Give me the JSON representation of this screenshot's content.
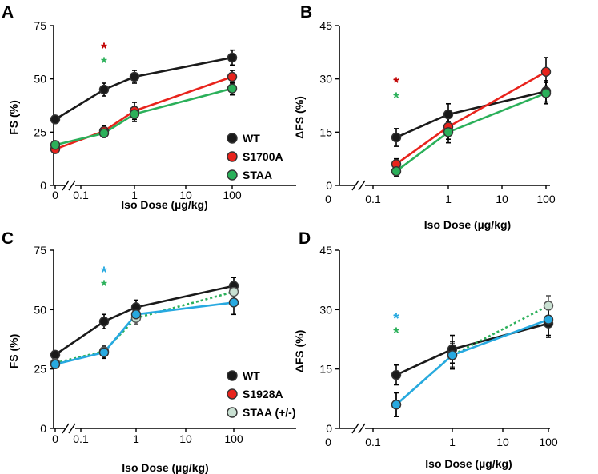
{
  "figure": {
    "colors": {
      "WT": "#1a1a1a",
      "S1700A": "#e8231c",
      "STAA": "#2bb05a",
      "S1928A": "#e8231c",
      "STAA_het": "#c9e0d2",
      "STAA_het_line": "#2bb05a",
      "S1928A_line": "#27a9e0",
      "sig_red": "#c00000",
      "sig_green": "#2bb05a",
      "sig_blue": "#27a9e0"
    }
  },
  "chart_data": [
    {
      "panel": "A",
      "type": "line",
      "xlabel": "Iso Dose (µg/kg)",
      "ylabel": "FS (%)",
      "x_ticks": [
        "0",
        "0.1",
        "1",
        "10",
        "100"
      ],
      "y_ticks": [
        0,
        25,
        50,
        75
      ],
      "ylim": [
        0,
        75
      ],
      "series": [
        {
          "name": "WT",
          "color_key": "WT",
          "line_key": "WT",
          "style": "solid",
          "x": [
            "0",
            "0.2",
            "1",
            "100"
          ],
          "values": [
            31,
            45,
            51,
            60
          ],
          "errors": [
            1.5,
            3,
            3,
            3.5
          ]
        },
        {
          "name": "S1700A",
          "color_key": "S1700A",
          "line_key": "S1700A",
          "style": "solid",
          "x": [
            "0",
            "0.2",
            "1",
            "100"
          ],
          "values": [
            17,
            25.5,
            35,
            51
          ],
          "errors": [
            1.5,
            2.5,
            4,
            3
          ]
        },
        {
          "name": "STAA",
          "color_key": "STAA",
          "line_key": "STAA",
          "style": "solid",
          "x": [
            "0",
            "0.2",
            "1",
            "100"
          ],
          "values": [
            19,
            24.5,
            33.5,
            45.5
          ],
          "errors": [
            1.5,
            2,
            3.5,
            3
          ]
        }
      ],
      "legend": [
        "WT",
        "S1700A",
        "STAA"
      ],
      "significance": [
        {
          "x": "0.2",
          "symbol": "*",
          "color_key": "sig_red"
        },
        {
          "x": "0.2",
          "symbol": "*",
          "color_key": "sig_green"
        }
      ]
    },
    {
      "panel": "B",
      "type": "line",
      "xlabel": "Iso Dose (µg/kg)",
      "ylabel": "ΔFS (%)",
      "x_ticks": [
        "0",
        "0.1",
        "1",
        "10",
        "100"
      ],
      "y_ticks": [
        0,
        15,
        30,
        45
      ],
      "ylim": [
        0,
        45
      ],
      "series": [
        {
          "name": "WT",
          "color_key": "WT",
          "line_key": "WT",
          "style": "solid",
          "x": [
            "0.2",
            "1",
            "100"
          ],
          "values": [
            13.5,
            20,
            26.5
          ],
          "errors": [
            2.5,
            3,
            3
          ]
        },
        {
          "name": "S1700A",
          "color_key": "S1700A",
          "line_key": "S1700A",
          "style": "solid",
          "x": [
            "0.2",
            "1",
            "100"
          ],
          "values": [
            6,
            16.5,
            32
          ],
          "errors": [
            1.5,
            3.5,
            4
          ]
        },
        {
          "name": "STAA",
          "color_key": "STAA",
          "line_key": "STAA",
          "style": "solid",
          "x": [
            "0.2",
            "1",
            "100"
          ],
          "values": [
            4,
            15,
            26
          ],
          "errors": [
            1.5,
            3,
            3
          ]
        }
      ],
      "legend": [],
      "significance": [
        {
          "x": "0.2",
          "symbol": "*",
          "color_key": "sig_red"
        },
        {
          "x": "0.2",
          "symbol": "*",
          "color_key": "sig_green"
        }
      ]
    },
    {
      "panel": "C",
      "type": "line",
      "xlabel": "Iso Dose (µg/kg)",
      "ylabel": "FS (%)",
      "x_ticks": [
        "0",
        "0.1",
        "1",
        "10",
        "100"
      ],
      "y_ticks": [
        0,
        25,
        50,
        75
      ],
      "ylim": [
        0,
        75
      ],
      "series": [
        {
          "name": "WT",
          "color_key": "WT",
          "line_key": "WT",
          "style": "solid",
          "x": [
            "0",
            "0.2",
            "1",
            "100"
          ],
          "values": [
            31,
            45,
            51,
            60
          ],
          "errors": [
            1.5,
            3,
            3,
            3.5
          ]
        },
        {
          "name": "STAA (+/-)",
          "color_key": "STAA_het",
          "line_key": "STAA_het_line",
          "style": "dotted",
          "x": [
            "0",
            "0.2",
            "1",
            "100"
          ],
          "values": [
            27.5,
            32.5,
            46.5,
            57.5
          ],
          "errors": [
            1.5,
            2.5,
            2.5,
            3
          ]
        },
        {
          "name": "S1928A",
          "color_key": "S1928A_line",
          "line_key": "S1928A_line",
          "style": "solid",
          "x": [
            "0",
            "0.2",
            "1",
            "100"
          ],
          "values": [
            27,
            32,
            48,
            53
          ],
          "errors": [
            1.5,
            2.5,
            3,
            5
          ]
        }
      ],
      "legend": [
        "WT",
        "S1928A",
        "STAA (+/-)"
      ],
      "legend_color_keys": [
        "WT",
        "S1928A",
        "STAA_het"
      ],
      "significance": [
        {
          "x": "0.2",
          "symbol": "*",
          "color_key": "sig_blue"
        },
        {
          "x": "0.2",
          "symbol": "*",
          "color_key": "sig_green"
        }
      ]
    },
    {
      "panel": "D",
      "type": "line",
      "xlabel": "Iso Dose (µg/kg)",
      "ylabel": "ΔFS (%)",
      "x_ticks": [
        "0",
        "0.1",
        "1",
        "10",
        "100"
      ],
      "y_ticks": [
        0,
        15,
        30,
        45
      ],
      "ylim": [
        0,
        45
      ],
      "series": [
        {
          "name": "WT",
          "color_key": "WT",
          "line_key": "WT",
          "style": "solid",
          "x": [
            "0.2",
            "1",
            "100"
          ],
          "values": [
            13.5,
            20,
            26.5
          ],
          "errors": [
            2.5,
            3.5,
            3.5
          ]
        },
        {
          "name": "STAA (+/-)",
          "color_key": "STAA_het",
          "line_key": "STAA_het_line",
          "style": "dotted",
          "x": [
            "0.2",
            "1",
            "100"
          ],
          "values": [
            6,
            18.5,
            31
          ],
          "errors": [
            3,
            3,
            2.5
          ]
        },
        {
          "name": "S1928A",
          "color_key": "S1928A_line",
          "line_key": "S1928A_line",
          "style": "solid",
          "x": [
            "0.2",
            "1",
            "100"
          ],
          "values": [
            6,
            18.5,
            27.5
          ],
          "errors": [
            3,
            3.5,
            4
          ]
        }
      ],
      "legend": [],
      "significance": [
        {
          "x": "0.2",
          "symbol": "*",
          "color_key": "sig_blue"
        },
        {
          "x": "0.2",
          "symbol": "*",
          "color_key": "sig_green"
        }
      ]
    }
  ]
}
